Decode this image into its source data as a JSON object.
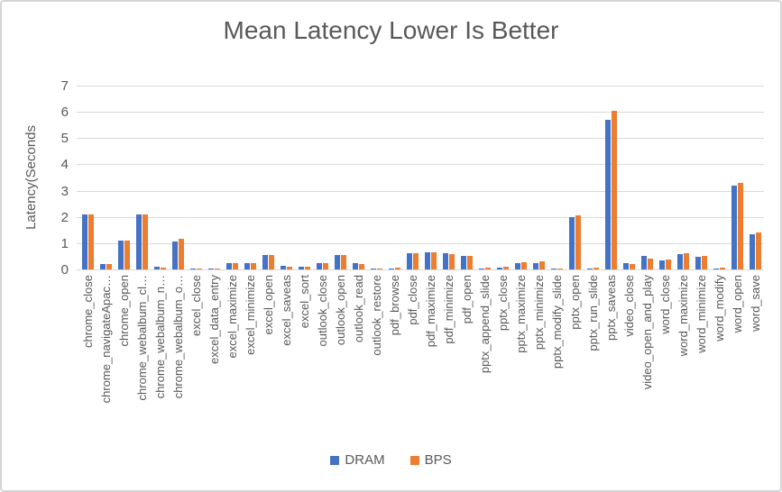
{
  "chart_data": {
    "type": "bar",
    "title": "Mean Latency Lower Is Better",
    "xlabel": "",
    "ylabel": "Latency(Seconds",
    "ylim": [
      0,
      7
    ],
    "ytick_step": 1,
    "yticks": [
      0,
      1,
      2,
      3,
      4,
      5,
      6,
      7
    ],
    "grid": true,
    "legend_position": "bottom-center",
    "categories": [
      "chrome_close",
      "chrome_navigateApac…",
      "chrome_open",
      "chrome_webalbum_cl…",
      "chrome_webalbum_n…",
      "chrome_webalbum_o…",
      "excel_close",
      "excel_data_entry",
      "excel_maximize",
      "excel_minimize",
      "excel_open",
      "excel_saveas",
      "excel_sort",
      "outlook_close",
      "outlook_open",
      "outlook_read",
      "outlook_restore",
      "pdf_browse",
      "pdf_close",
      "pdf_maximize",
      "pdf_minimize",
      "pdf_open",
      "pptx_append_slide",
      "pptx_close",
      "pptx_maximize",
      "pptx_minimize",
      "pptx_modify_slide",
      "pptx_open",
      "pptx_run_slide",
      "pptx_saveas",
      "video_close",
      "video_open_and_play",
      "word_close",
      "word_maximize",
      "word_minimize",
      "word_modify",
      "word_open",
      "word_save"
    ],
    "series": [
      {
        "name": "DRAM",
        "color": "#4472C4",
        "values": [
          2.1,
          0.22,
          1.1,
          2.1,
          0.1,
          1.05,
          0.05,
          0.05,
          0.25,
          0.25,
          0.55,
          0.15,
          0.1,
          0.25,
          0.55,
          0.25,
          0.05,
          0.05,
          0.62,
          0.65,
          0.62,
          0.5,
          0.05,
          0.08,
          0.25,
          0.25,
          0.04,
          2.0,
          0.05,
          5.7,
          0.25,
          0.5,
          0.35,
          0.6,
          0.48,
          0.04,
          3.2,
          1.35
        ]
      },
      {
        "name": "BPS",
        "color": "#ED7D31",
        "values": [
          2.1,
          0.2,
          1.1,
          2.1,
          0.07,
          1.15,
          0.05,
          0.05,
          0.25,
          0.25,
          0.55,
          0.12,
          0.1,
          0.25,
          0.55,
          0.2,
          0.05,
          0.07,
          0.62,
          0.65,
          0.6,
          0.5,
          0.06,
          0.12,
          0.27,
          0.3,
          0.05,
          2.05,
          0.07,
          6.05,
          0.22,
          0.42,
          0.38,
          0.62,
          0.5,
          0.07,
          3.3,
          1.42
        ]
      }
    ]
  },
  "colors": {
    "text": "#595959",
    "gridline": "#d9d9d9",
    "axis_line": "#d9d9d9",
    "frame_border": "#d5d5d8",
    "background": "#ffffff"
  }
}
